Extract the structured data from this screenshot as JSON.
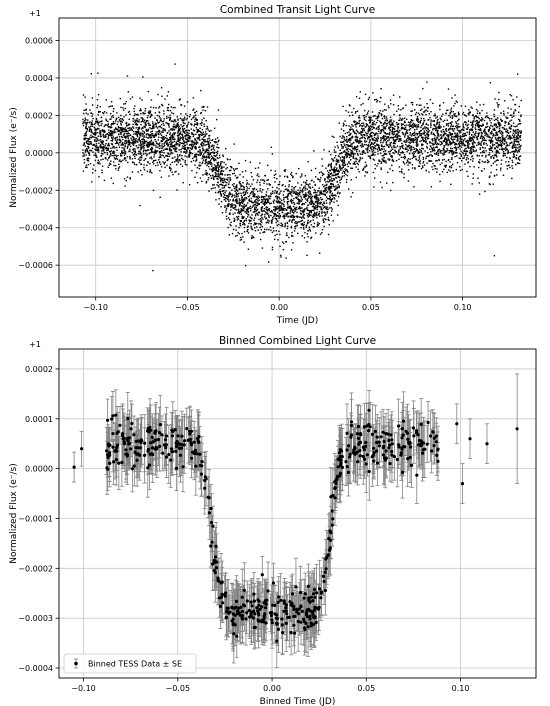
{
  "chart_data": [
    {
      "type": "scatter",
      "title": "Combined Transit Light Curve",
      "xlabel": "Time (JD)",
      "ylabel": "Normalized Flux (e⁻/s)",
      "offset_text": "+1",
      "xlim": [
        -0.12,
        0.14
      ],
      "ylim": [
        -0.00077,
        0.00072
      ],
      "xticks": [
        -0.1,
        -0.05,
        0.0,
        0.05,
        0.1
      ],
      "xtick_labels": [
        "−0.10",
        "−0.05",
        "0.00",
        "0.05",
        "0.10"
      ],
      "yticks": [
        -0.0006,
        -0.0004,
        -0.0002,
        0.0,
        0.0002,
        0.0004,
        0.0006
      ],
      "ytick_labels": [
        "−0.0006",
        "−0.0004",
        "−0.0002",
        "0.0000",
        "0.0002",
        "0.0004",
        "0.0006"
      ],
      "grid": true,
      "marker_color": "#000000",
      "model": {
        "x_range": [
          -0.107,
          0.132
        ],
        "n_points": 6000,
        "out_of_transit_level": 8e-05,
        "in_transit_level": -0.00029,
        "ingress_center": -0.033,
        "egress_center": 0.031,
        "edge_width": 0.004,
        "scatter_sigma": 8.5e-05
      },
      "samples": [
        {
          "x": -0.1,
          "y": 0.0001
        },
        {
          "x": -0.08,
          "y": 0.00012
        },
        {
          "x": -0.06,
          "y": 7e-05
        },
        {
          "x": -0.04,
          "y": 6e-05
        },
        {
          "x": -0.03,
          "y": -0.00015
        },
        {
          "x": -0.02,
          "y": -0.00027
        },
        {
          "x": 0.0,
          "y": -0.0003
        },
        {
          "x": 0.02,
          "y": -0.00026
        },
        {
          "x": 0.03,
          "y": -0.00012
        },
        {
          "x": 0.04,
          "y": 8e-05
        },
        {
          "x": 0.06,
          "y": 0.0001
        },
        {
          "x": 0.08,
          "y": 6e-05
        },
        {
          "x": 0.1,
          "y": 5e-05
        },
        {
          "x": 0.13,
          "y": 0.00042
        }
      ]
    },
    {
      "type": "scatter",
      "title": "Binned Combined Light Curve",
      "xlabel": "Binned Time (JD)",
      "ylabel": "Normalized Flux (e⁻/s)",
      "offset_text": "+1",
      "xlim": [
        -0.113,
        0.14
      ],
      "ylim": [
        -0.00042,
        0.00024
      ],
      "xticks": [
        -0.1,
        -0.05,
        0.0,
        0.05,
        0.1
      ],
      "xtick_labels": [
        "−0.10",
        "−0.05",
        "0.00",
        "0.05",
        "0.10"
      ],
      "yticks": [
        -0.0004,
        -0.0003,
        -0.0002,
        -0.0001,
        0.0,
        0.0001,
        0.0002
      ],
      "ytick_labels": [
        "−0.0004",
        "−0.0003",
        "−0.0002",
        "−0.0001",
        "0.0000",
        "0.0001",
        "0.0002"
      ],
      "grid": true,
      "marker_color": "#000000",
      "errorbar_color": "#808080",
      "legend": {
        "label": "Binned TESS Data ± SE",
        "location": "lower-left"
      },
      "model": {
        "x_range": [
          -0.088,
          0.088
        ],
        "n_points": 560,
        "out_of_transit_level": 5e-05,
        "in_transit_level": -0.00029,
        "ingress_center": -0.032,
        "egress_center": 0.031,
        "edge_width": 0.0025,
        "scatter_sigma": 2.2e-05,
        "error_min": 3.5e-05,
        "error_max": 6e-05
      },
      "points": [
        {
          "x": -0.105,
          "y": 3e-06,
          "err": 3e-05
        },
        {
          "x": -0.101,
          "y": 4e-05,
          "err": 3.5e-05
        },
        {
          "x": 0.098,
          "y": 9e-05,
          "err": 4e-05
        },
        {
          "x": 0.101,
          "y": -3e-05,
          "err": 4e-05
        },
        {
          "x": 0.105,
          "y": 6e-05,
          "err": 4e-05
        },
        {
          "x": 0.114,
          "y": 5e-05,
          "err": 4e-05
        },
        {
          "x": 0.13,
          "y": 8e-05,
          "err": 0.00011
        }
      ]
    }
  ]
}
